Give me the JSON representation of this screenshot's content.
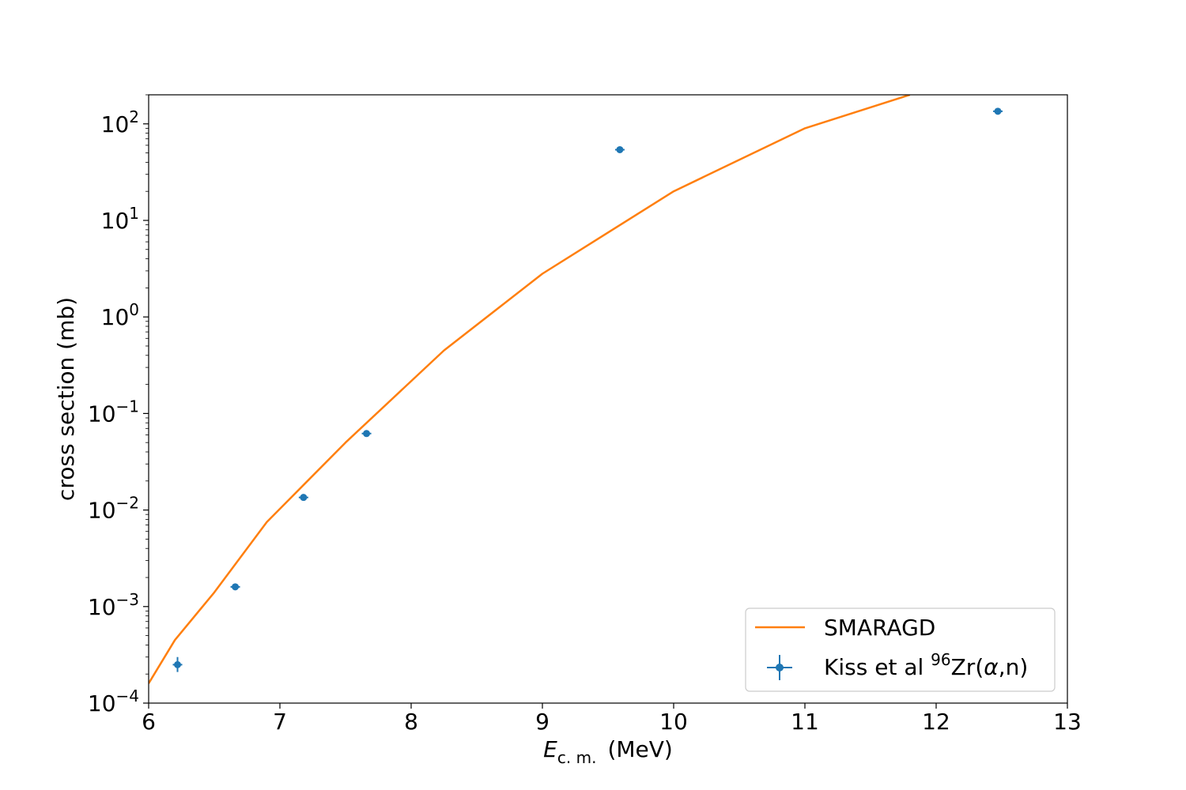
{
  "chart_data": {
    "type": "line",
    "xlabel": {
      "main": "E",
      "sub": "c. m.",
      "units": "(MeV)"
    },
    "ylabel": "cross section (mb)",
    "xlim": [
      6,
      13
    ],
    "ylim": [
      0.0001,
      200
    ],
    "yscale": "log",
    "x_ticks": [
      6,
      7,
      8,
      9,
      10,
      11,
      12,
      13
    ],
    "y_ticks": [
      {
        "value": 0.0001,
        "base": "10",
        "exp": "−4"
      },
      {
        "value": 0.001,
        "base": "10",
        "exp": "−3"
      },
      {
        "value": 0.01,
        "base": "10",
        "exp": "−2"
      },
      {
        "value": 0.1,
        "base": "10",
        "exp": "−1"
      },
      {
        "value": 1,
        "base": "10",
        "exp": "0"
      },
      {
        "value": 10,
        "base": "10",
        "exp": "1"
      },
      {
        "value": 100,
        "base": "10",
        "exp": "2"
      }
    ],
    "grid": false,
    "legend_position": "bottom-right",
    "series": [
      {
        "name": "SMARAGD",
        "kind": "line",
        "color": "#ff7f0e",
        "x": [
          6.0,
          6.2,
          6.5,
          6.9,
          7.5,
          8.25,
          9.0,
          10.0,
          11.0,
          11.8
        ],
        "y": [
          0.00016,
          0.00045,
          0.0014,
          0.0075,
          0.05,
          0.45,
          2.8,
          20,
          90,
          200
        ]
      },
      {
        "name_parts": {
          "prefix": "Kiss et al ",
          "sup": "96",
          "element": "Zr(",
          "greek": "α",
          "suffix": ",n)"
        },
        "kind": "errorbar",
        "color": "#1f77b4",
        "x": [
          6.22,
          6.66,
          7.18,
          7.66,
          9.59,
          12.47
        ],
        "y": [
          0.00025,
          0.0016,
          0.0135,
          0.062,
          54,
          135
        ],
        "yerr_low": [
          0.00021,
          0.00148,
          0.0128,
          0.06,
          51,
          128
        ],
        "yerr_high": [
          0.0003,
          0.00173,
          0.0142,
          0.064,
          57,
          142
        ]
      }
    ]
  }
}
